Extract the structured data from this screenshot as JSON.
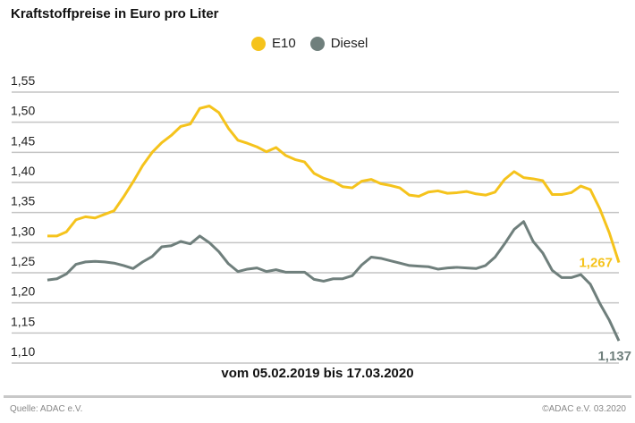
{
  "chart_data": {
    "type": "line",
    "title": "Kraftstoffpreise in Euro pro Liter",
    "xlabel": "vom 05.02.2019 bis 17.03.2020",
    "ylabel": "",
    "ylim": [
      1.1,
      1.55
    ],
    "yticks": [
      "1,55",
      "1,50",
      "1,45",
      "1,40",
      "1,35",
      "1,30",
      "1,25",
      "1,20",
      "1,15",
      "1,10"
    ],
    "ytick_values": [
      1.55,
      1.5,
      1.45,
      1.4,
      1.35,
      1.3,
      1.25,
      1.2,
      1.15,
      1.1
    ],
    "grid": "horizontal",
    "legend": "top-center",
    "series": [
      {
        "name": "E10",
        "color": "#f5c31c",
        "end_label": "1,267",
        "values": [
          1.311,
          1.311,
          1.318,
          1.338,
          1.343,
          1.341,
          1.347,
          1.353,
          1.376,
          1.401,
          1.428,
          1.45,
          1.466,
          1.478,
          1.493,
          1.497,
          1.523,
          1.527,
          1.516,
          1.49,
          1.47,
          1.465,
          1.459,
          1.451,
          1.458,
          1.445,
          1.438,
          1.434,
          1.415,
          1.407,
          1.402,
          1.393,
          1.391,
          1.402,
          1.405,
          1.398,
          1.395,
          1.391,
          1.379,
          1.377,
          1.384,
          1.386,
          1.382,
          1.383,
          1.385,
          1.381,
          1.379,
          1.384,
          1.405,
          1.418,
          1.408,
          1.406,
          1.403,
          1.38,
          1.38,
          1.383,
          1.394,
          1.388,
          1.356,
          1.316,
          1.267
        ]
      },
      {
        "name": "Diesel",
        "color": "#6f7f7c",
        "end_label": "1,137",
        "values": [
          1.238,
          1.24,
          1.248,
          1.264,
          1.268,
          1.269,
          1.268,
          1.266,
          1.262,
          1.257,
          1.268,
          1.277,
          1.293,
          1.295,
          1.302,
          1.298,
          1.311,
          1.3,
          1.285,
          1.265,
          1.252,
          1.256,
          1.258,
          1.252,
          1.255,
          1.251,
          1.251,
          1.251,
          1.239,
          1.236,
          1.24,
          1.24,
          1.245,
          1.263,
          1.276,
          1.274,
          1.27,
          1.266,
          1.262,
          1.261,
          1.26,
          1.256,
          1.258,
          1.259,
          1.258,
          1.257,
          1.262,
          1.276,
          1.298,
          1.322,
          1.335,
          1.302,
          1.283,
          1.254,
          1.242,
          1.242,
          1.247,
          1.231,
          1.199,
          1.171,
          1.137
        ]
      }
    ]
  },
  "footer": {
    "source": "Quelle: ADAC e.V.",
    "copyright": "©ADAC e.V.  03.2020"
  }
}
